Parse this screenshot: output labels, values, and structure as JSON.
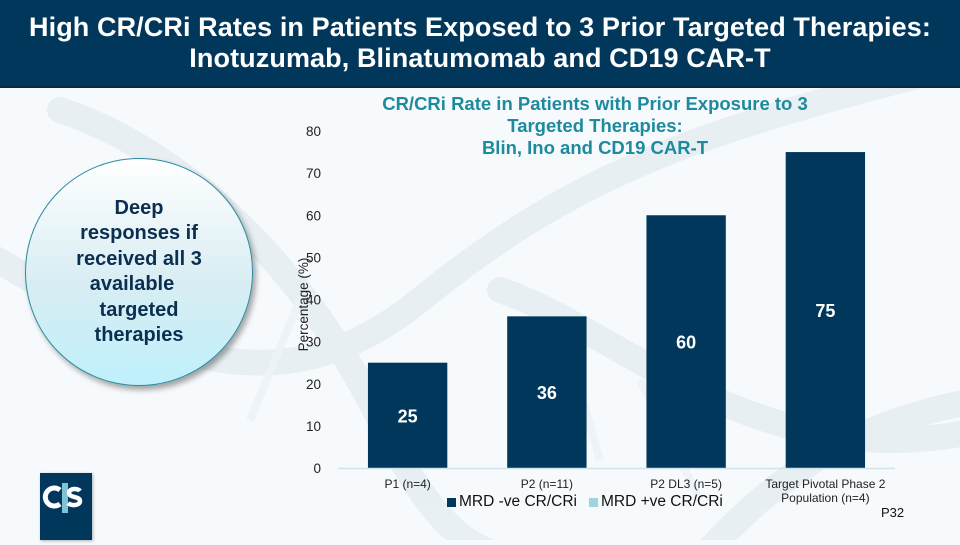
{
  "header": {
    "title_line1": "High CR/CRi Rates in Patients Exposed to 3 Prior Targeted Therapies:",
    "title_line2": "Inotuzumab, Blinatumomab and CD19 CAR-T"
  },
  "callout": {
    "lines": [
      "Deep",
      "responses if",
      "received all 3",
      "available",
      "targeted",
      "therapies"
    ]
  },
  "logo": {
    "text": "cts",
    "icon": "company-logo"
  },
  "page_number": "P32",
  "colors": {
    "header_bg": "#02375c",
    "title_teal": "#1d8a9e",
    "bar_dark": "#02375c",
    "bar_light": "#9fd3de",
    "callout_text": "#0b2f50"
  },
  "chart_data": {
    "type": "bar",
    "title_lines": [
      "CR/CRi Rate in Patients with Prior Exposure to 3",
      "Targeted Therapies:",
      "Blin, Ino and CD19 CAR-T"
    ],
    "categories": [
      [
        "P1 (n=4)"
      ],
      [
        "P2 (n=11)"
      ],
      [
        "P2 DL3 (n=5)"
      ],
      [
        "Target Pivotal Phase 2",
        "Population (n=4)"
      ]
    ],
    "series": [
      {
        "name": "MRD -ve CR/CRi",
        "color": "#02375c",
        "values": [
          25,
          36,
          60,
          75
        ]
      },
      {
        "name": "MRD +ve CR/CRi",
        "color": "#9fd3de",
        "values": [
          0,
          0,
          0,
          0
        ]
      }
    ],
    "data_labels": [
      "25",
      "36",
      "60",
      "75"
    ],
    "xlabel": "",
    "ylabel": "Percentage (%)",
    "ylim": [
      0,
      80
    ],
    "yticks": [
      0,
      10,
      20,
      30,
      40,
      50,
      60,
      70,
      80
    ],
    "grid": false,
    "legend_position": "bottom"
  }
}
